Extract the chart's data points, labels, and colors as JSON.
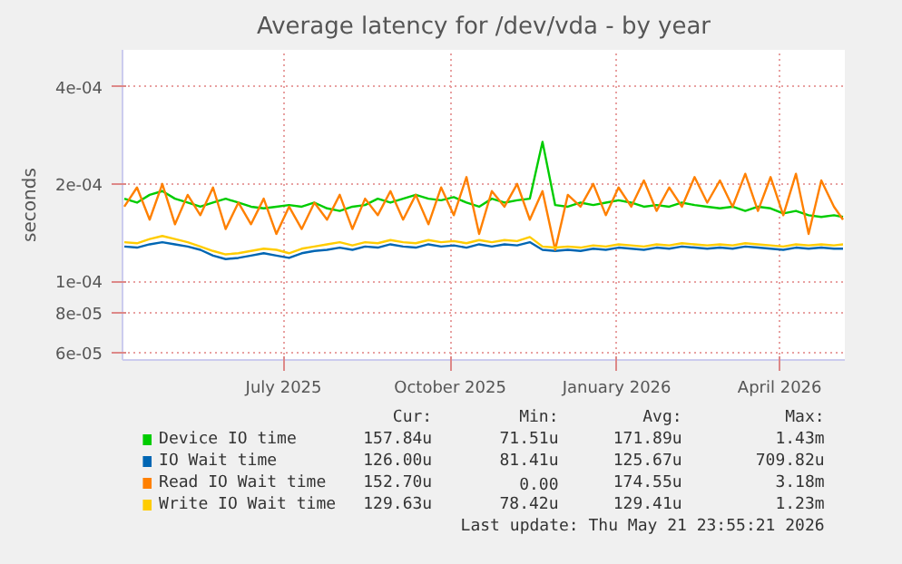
{
  "chart_data": {
    "type": "line",
    "title": "Average latency for /dev/vda - by year",
    "ylabel": "seconds",
    "log": "y",
    "grid": true,
    "legend": "bottom",
    "xlim": [
      "2025-04-18",
      "2026-05-22"
    ],
    "xticks": [
      {
        "value": "2025-07-16",
        "label": "July 2025"
      },
      {
        "value": "2025-10-16",
        "label": "October 2025"
      },
      {
        "value": "2026-01-16",
        "label": "January 2026"
      },
      {
        "value": "2026-04-16",
        "label": "April 2026"
      }
    ],
    "ylim": [
      5.7e-05,
      0.00052
    ],
    "yticks": [
      {
        "value": 6e-05,
        "label": "6e-05"
      },
      {
        "value": 8e-05,
        "label": "8e-05"
      },
      {
        "value": 0.0001,
        "label": "1e-04"
      },
      {
        "value": 0.0002,
        "label": "2e-04"
      },
      {
        "value": 0.0004,
        "label": "4e-04"
      }
    ],
    "x": [
      "2025-04-19",
      "2025-04-26",
      "2025-05-03",
      "2025-05-10",
      "2025-05-17",
      "2025-05-24",
      "2025-05-31",
      "2025-06-07",
      "2025-06-14",
      "2025-06-21",
      "2025-06-28",
      "2025-07-05",
      "2025-07-12",
      "2025-07-19",
      "2025-07-26",
      "2025-08-02",
      "2025-08-09",
      "2025-08-16",
      "2025-08-23",
      "2025-08-30",
      "2025-09-06",
      "2025-09-13",
      "2025-09-20",
      "2025-09-27",
      "2025-10-04",
      "2025-10-11",
      "2025-10-18",
      "2025-10-25",
      "2025-11-01",
      "2025-11-08",
      "2025-11-15",
      "2025-11-22",
      "2025-11-29",
      "2025-12-06",
      "2025-12-13",
      "2025-12-20",
      "2025-12-27",
      "2026-01-03",
      "2026-01-10",
      "2026-01-17",
      "2026-01-24",
      "2026-01-31",
      "2026-02-07",
      "2026-02-14",
      "2026-02-21",
      "2026-02-28",
      "2026-03-07",
      "2026-03-14",
      "2026-03-21",
      "2026-03-28",
      "2026-04-04",
      "2026-04-11",
      "2026-04-18",
      "2026-04-25",
      "2026-05-02",
      "2026-05-09",
      "2026-05-16",
      "2026-05-21"
    ],
    "series": [
      {
        "name": "Device IO time",
        "color": "#00cc00",
        "values": [
          0.00018,
          0.000175,
          0.000185,
          0.00019,
          0.00018,
          0.000175,
          0.00017,
          0.000175,
          0.00018,
          0.000175,
          0.00017,
          0.000168,
          0.00017,
          0.000172,
          0.00017,
          0.000175,
          0.000168,
          0.000165,
          0.00017,
          0.000172,
          0.00018,
          0.000175,
          0.00018,
          0.000185,
          0.00018,
          0.000178,
          0.000182,
          0.000175,
          0.00017,
          0.00018,
          0.000175,
          0.000178,
          0.00018,
          0.00027,
          0.000172,
          0.00017,
          0.000175,
          0.000172,
          0.000175,
          0.000178,
          0.000175,
          0.00017,
          0.000172,
          0.00017,
          0.000175,
          0.000172,
          0.00017,
          0.000168,
          0.00017,
          0.000165,
          0.00017,
          0.000168,
          0.000162,
          0.000165,
          0.00016,
          0.000158,
          0.00016,
          0.000158
        ]
      },
      {
        "name": "IO Wait time",
        "color": "#0066b3",
        "values": [
          0.000128,
          0.000127,
          0.00013,
          0.000132,
          0.00013,
          0.000128,
          0.000125,
          0.00012,
          0.000117,
          0.000118,
          0.00012,
          0.000122,
          0.00012,
          0.000118,
          0.000122,
          0.000124,
          0.000125,
          0.000127,
          0.000125,
          0.000128,
          0.000127,
          0.00013,
          0.000128,
          0.000127,
          0.00013,
          0.000128,
          0.000129,
          0.000127,
          0.00013,
          0.000128,
          0.00013,
          0.000129,
          0.000132,
          0.000125,
          0.000124,
          0.000125,
          0.000124,
          0.000126,
          0.000125,
          0.000127,
          0.000126,
          0.000125,
          0.000127,
          0.000126,
          0.000128,
          0.000127,
          0.000126,
          0.000127,
          0.000126,
          0.000128,
          0.000127,
          0.000126,
          0.000125,
          0.000127,
          0.000126,
          0.000127,
          0.000126,
          0.000126
        ]
      },
      {
        "name": "Read IO Wait time",
        "color": "#ff8000",
        "values": [
          0.00017,
          0.000195,
          0.000155,
          0.0002,
          0.00015,
          0.000185,
          0.00016,
          0.000195,
          0.000145,
          0.000175,
          0.00015,
          0.00018,
          0.00014,
          0.00017,
          0.000145,
          0.000175,
          0.000155,
          0.000185,
          0.000145,
          0.00018,
          0.00016,
          0.00019,
          0.000155,
          0.000185,
          0.00015,
          0.000195,
          0.00016,
          0.00021,
          0.00014,
          0.00019,
          0.00017,
          0.0002,
          0.000155,
          0.00019,
          0.000125,
          0.000185,
          0.00017,
          0.0002,
          0.00016,
          0.000195,
          0.00017,
          0.000205,
          0.000165,
          0.000195,
          0.00017,
          0.00021,
          0.000175,
          0.000205,
          0.00017,
          0.000215,
          0.000165,
          0.00021,
          0.00016,
          0.000215,
          0.00014,
          0.000205,
          0.00017,
          0.000155
        ]
      },
      {
        "name": "Write IO Wait time",
        "color": "#ffcc00",
        "values": [
          0.000132,
          0.000131,
          0.000135,
          0.000138,
          0.000135,
          0.000132,
          0.000128,
          0.000124,
          0.000121,
          0.000122,
          0.000124,
          0.000126,
          0.000125,
          0.000122,
          0.000126,
          0.000128,
          0.00013,
          0.000132,
          0.000129,
          0.000132,
          0.000131,
          0.000134,
          0.000132,
          0.000131,
          0.000134,
          0.000132,
          0.000133,
          0.000131,
          0.000134,
          0.000132,
          0.000134,
          0.000133,
          0.000137,
          0.000128,
          0.000127,
          0.000128,
          0.000127,
          0.000129,
          0.000128,
          0.00013,
          0.000129,
          0.000128,
          0.00013,
          0.000129,
          0.000131,
          0.00013,
          0.000129,
          0.00013,
          0.000129,
          0.000131,
          0.00013,
          0.000129,
          0.000128,
          0.00013,
          0.000129,
          0.00013,
          0.000129,
          0.00013
        ]
      }
    ],
    "annotations": [
      "Cur:",
      "Min:",
      "Avg:",
      "Max:",
      "157.84u",
      "71.51u",
      "171.89u",
      "1.43m",
      "126.00u",
      "81.41u",
      "125.67u",
      "709.82u",
      "152.70u",
      "0.00",
      "174.55u",
      "3.18m",
      "129.63u",
      "78.42u",
      "129.41u",
      "1.23m",
      "Last update: Thu May 21 23:55:21 2026"
    ]
  }
}
